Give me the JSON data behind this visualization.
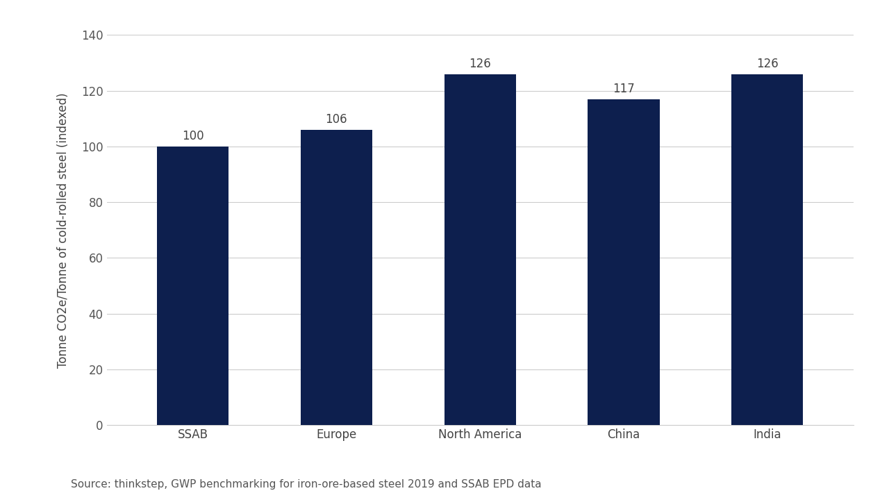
{
  "categories": [
    "SSAB",
    "Europe",
    "North America",
    "China",
    "India"
  ],
  "values": [
    100,
    106,
    126,
    117,
    126
  ],
  "bar_color": "#0d1f4e",
  "background_color": "#ffffff",
  "ylabel": "Tonne CO2e/Tonne of cold-rolled steel (indexed)",
  "ylim": [
    0,
    140
  ],
  "yticks": [
    0,
    20,
    40,
    60,
    80,
    100,
    120,
    140
  ],
  "source_text": "Source: thinkstep, GWP benchmarking for iron-ore-based steel 2019 and SSAB EPD data",
  "bar_width": 0.5,
  "tick_fontsize": 12,
  "ylabel_fontsize": 12,
  "source_fontsize": 11,
  "annotation_fontsize": 12,
  "grid_color": "#cccccc",
  "text_color": "#555555",
  "label_color": "#444444"
}
